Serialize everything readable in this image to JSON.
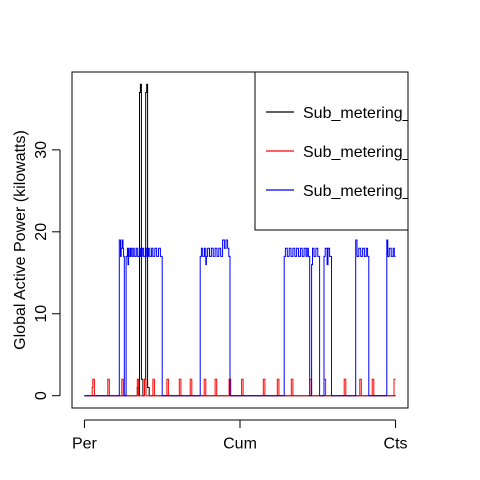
{
  "chart_data": {
    "type": "line",
    "title": "",
    "xlabel": "",
    "ylabel": "Global Active Power (kilowatts)",
    "x_ticks": [
      "Per",
      "Cum",
      "Cts"
    ],
    "y_ticks": [
      0,
      10,
      20,
      30
    ],
    "ylim": [
      -1.5,
      39.5
    ],
    "xlim": [
      -0.04,
      1.04
    ],
    "legend_position": "top-right",
    "series": [
      {
        "name": "Sub_metering_",
        "color": "#000000",
        "points": [
          [
            0.0,
            0
          ],
          [
            0.17,
            0
          ],
          [
            0.17,
            1
          ],
          [
            0.175,
            1
          ],
          [
            0.175,
            0
          ],
          [
            0.177,
            0
          ],
          [
            0.177,
            37
          ],
          [
            0.18,
            37
          ],
          [
            0.18,
            38
          ],
          [
            0.183,
            38
          ],
          [
            0.183,
            2
          ],
          [
            0.188,
            2
          ],
          [
            0.188,
            0
          ],
          [
            0.193,
            0
          ],
          [
            0.193,
            2
          ],
          [
            0.197,
            2
          ],
          [
            0.197,
            37
          ],
          [
            0.2,
            37
          ],
          [
            0.2,
            38
          ],
          [
            0.203,
            38
          ],
          [
            0.203,
            1
          ],
          [
            0.208,
            1
          ],
          [
            0.208,
            0
          ],
          [
            1.0,
            0
          ]
        ]
      },
      {
        "name": "Sub_metering_",
        "color": "#ff0000",
        "points": [
          [
            0.0,
            0
          ],
          [
            0.025,
            0
          ],
          [
            0.025,
            1
          ],
          [
            0.027,
            1
          ],
          [
            0.027,
            2
          ],
          [
            0.032,
            2
          ],
          [
            0.032,
            0
          ],
          [
            0.075,
            0
          ],
          [
            0.075,
            2
          ],
          [
            0.08,
            2
          ],
          [
            0.08,
            0
          ],
          [
            0.12,
            0
          ],
          [
            0.12,
            2
          ],
          [
            0.125,
            2
          ],
          [
            0.125,
            0
          ],
          [
            0.17,
            0
          ],
          [
            0.17,
            2
          ],
          [
            0.174,
            2
          ],
          [
            0.174,
            0
          ],
          [
            0.193,
            0
          ],
          [
            0.193,
            2
          ],
          [
            0.198,
            2
          ],
          [
            0.198,
            0
          ],
          [
            0.22,
            0
          ],
          [
            0.22,
            2
          ],
          [
            0.225,
            2
          ],
          [
            0.225,
            0
          ],
          [
            0.265,
            0
          ],
          [
            0.265,
            2
          ],
          [
            0.27,
            2
          ],
          [
            0.27,
            0
          ],
          [
            0.305,
            0
          ],
          [
            0.305,
            2
          ],
          [
            0.31,
            2
          ],
          [
            0.31,
            0
          ],
          [
            0.34,
            0
          ],
          [
            0.34,
            2
          ],
          [
            0.345,
            2
          ],
          [
            0.345,
            0
          ],
          [
            0.385,
            0
          ],
          [
            0.385,
            2
          ],
          [
            0.39,
            2
          ],
          [
            0.39,
            0
          ],
          [
            0.42,
            0
          ],
          [
            0.42,
            2
          ],
          [
            0.425,
            2
          ],
          [
            0.425,
            0
          ],
          [
            0.465,
            0
          ],
          [
            0.465,
            2
          ],
          [
            0.47,
            2
          ],
          [
            0.47,
            0
          ],
          [
            0.505,
            0
          ],
          [
            0.505,
            2
          ],
          [
            0.51,
            2
          ],
          [
            0.51,
            0
          ],
          [
            0.575,
            0
          ],
          [
            0.575,
            2
          ],
          [
            0.58,
            2
          ],
          [
            0.58,
            0
          ],
          [
            0.62,
            0
          ],
          [
            0.62,
            2
          ],
          [
            0.625,
            2
          ],
          [
            0.625,
            0
          ],
          [
            0.665,
            0
          ],
          [
            0.665,
            2
          ],
          [
            0.67,
            2
          ],
          [
            0.67,
            0
          ],
          [
            0.725,
            0
          ],
          [
            0.725,
            2
          ],
          [
            0.73,
            2
          ],
          [
            0.73,
            0
          ],
          [
            0.77,
            0
          ],
          [
            0.77,
            2
          ],
          [
            0.775,
            2
          ],
          [
            0.775,
            0
          ],
          [
            0.835,
            0
          ],
          [
            0.835,
            2
          ],
          [
            0.84,
            2
          ],
          [
            0.84,
            0
          ],
          [
            0.885,
            0
          ],
          [
            0.885,
            2
          ],
          [
            0.89,
            2
          ],
          [
            0.89,
            0
          ],
          [
            0.925,
            0
          ],
          [
            0.925,
            2
          ],
          [
            0.93,
            2
          ],
          [
            0.93,
            0
          ],
          [
            0.995,
            0
          ],
          [
            0.995,
            2
          ],
          [
            1.0,
            2
          ]
        ]
      },
      {
        "name": "Sub_metering_",
        "color": "#0000ff",
        "points": [
          [
            0.0,
            0
          ],
          [
            0.112,
            0
          ],
          [
            0.112,
            19
          ],
          [
            0.116,
            19
          ],
          [
            0.116,
            17
          ],
          [
            0.118,
            17
          ],
          [
            0.118,
            18
          ],
          [
            0.121,
            18
          ],
          [
            0.121,
            19
          ],
          [
            0.124,
            19
          ],
          [
            0.124,
            18
          ],
          [
            0.126,
            18
          ],
          [
            0.126,
            17
          ],
          [
            0.128,
            17
          ],
          [
            0.128,
            0
          ],
          [
            0.134,
            0
          ],
          [
            0.134,
            17
          ],
          [
            0.138,
            17
          ],
          [
            0.138,
            18
          ],
          [
            0.14,
            18
          ],
          [
            0.14,
            16
          ],
          [
            0.142,
            16
          ],
          [
            0.142,
            18
          ],
          [
            0.144,
            18
          ],
          [
            0.144,
            17
          ],
          [
            0.148,
            17
          ],
          [
            0.148,
            18
          ],
          [
            0.152,
            18
          ],
          [
            0.152,
            17
          ],
          [
            0.156,
            17
          ],
          [
            0.156,
            18
          ],
          [
            0.16,
            18
          ],
          [
            0.16,
            17
          ],
          [
            0.166,
            17
          ],
          [
            0.166,
            18
          ],
          [
            0.17,
            18
          ],
          [
            0.17,
            17
          ],
          [
            0.176,
            17
          ],
          [
            0.176,
            18
          ],
          [
            0.18,
            18
          ],
          [
            0.18,
            17
          ],
          [
            0.186,
            17
          ],
          [
            0.186,
            18
          ],
          [
            0.19,
            18
          ],
          [
            0.19,
            17
          ],
          [
            0.196,
            17
          ],
          [
            0.196,
            18
          ],
          [
            0.2,
            18
          ],
          [
            0.2,
            17
          ],
          [
            0.206,
            17
          ],
          [
            0.206,
            18
          ],
          [
            0.21,
            18
          ],
          [
            0.21,
            17
          ],
          [
            0.216,
            17
          ],
          [
            0.216,
            18
          ],
          [
            0.22,
            18
          ],
          [
            0.22,
            17
          ],
          [
            0.226,
            17
          ],
          [
            0.226,
            18
          ],
          [
            0.232,
            18
          ],
          [
            0.232,
            17
          ],
          [
            0.238,
            17
          ],
          [
            0.238,
            18
          ],
          [
            0.244,
            18
          ],
          [
            0.244,
            17
          ],
          [
            0.25,
            17
          ],
          [
            0.25,
            0
          ],
          [
            0.372,
            0
          ],
          [
            0.372,
            17
          ],
          [
            0.376,
            17
          ],
          [
            0.376,
            18
          ],
          [
            0.38,
            18
          ],
          [
            0.38,
            17
          ],
          [
            0.386,
            17
          ],
          [
            0.386,
            18
          ],
          [
            0.39,
            18
          ],
          [
            0.39,
            16
          ],
          [
            0.392,
            16
          ],
          [
            0.392,
            17
          ],
          [
            0.396,
            17
          ],
          [
            0.396,
            18
          ],
          [
            0.402,
            18
          ],
          [
            0.402,
            17
          ],
          [
            0.408,
            17
          ],
          [
            0.408,
            18
          ],
          [
            0.414,
            18
          ],
          [
            0.414,
            17
          ],
          [
            0.42,
            17
          ],
          [
            0.42,
            18
          ],
          [
            0.426,
            18
          ],
          [
            0.426,
            17
          ],
          [
            0.432,
            17
          ],
          [
            0.432,
            18
          ],
          [
            0.438,
            18
          ],
          [
            0.438,
            17
          ],
          [
            0.444,
            17
          ],
          [
            0.444,
            19
          ],
          [
            0.45,
            19
          ],
          [
            0.45,
            18
          ],
          [
            0.455,
            18
          ],
          [
            0.455,
            19
          ],
          [
            0.46,
            19
          ],
          [
            0.46,
            18
          ],
          [
            0.464,
            18
          ],
          [
            0.464,
            17
          ],
          [
            0.468,
            17
          ],
          [
            0.468,
            0
          ],
          [
            0.642,
            0
          ],
          [
            0.642,
            17
          ],
          [
            0.646,
            17
          ],
          [
            0.646,
            18
          ],
          [
            0.652,
            18
          ],
          [
            0.652,
            17
          ],
          [
            0.658,
            17
          ],
          [
            0.658,
            18
          ],
          [
            0.664,
            18
          ],
          [
            0.664,
            17
          ],
          [
            0.67,
            17
          ],
          [
            0.67,
            18
          ],
          [
            0.676,
            18
          ],
          [
            0.676,
            17
          ],
          [
            0.682,
            17
          ],
          [
            0.682,
            18
          ],
          [
            0.688,
            18
          ],
          [
            0.688,
            17
          ],
          [
            0.694,
            17
          ],
          [
            0.694,
            18
          ],
          [
            0.7,
            18
          ],
          [
            0.7,
            17
          ],
          [
            0.706,
            17
          ],
          [
            0.706,
            18
          ],
          [
            0.712,
            18
          ],
          [
            0.712,
            17
          ],
          [
            0.716,
            17
          ],
          [
            0.716,
            18
          ],
          [
            0.72,
            18
          ],
          [
            0.72,
            17
          ],
          [
            0.724,
            17
          ],
          [
            0.724,
            0
          ],
          [
            0.73,
            0
          ],
          [
            0.73,
            16
          ],
          [
            0.733,
            16
          ],
          [
            0.733,
            18
          ],
          [
            0.738,
            18
          ],
          [
            0.738,
            17
          ],
          [
            0.744,
            17
          ],
          [
            0.744,
            18
          ],
          [
            0.75,
            18
          ],
          [
            0.75,
            17
          ],
          [
            0.756,
            17
          ],
          [
            0.756,
            0
          ],
          [
            0.77,
            0
          ],
          [
            0.77,
            17
          ],
          [
            0.774,
            17
          ],
          [
            0.774,
            18
          ],
          [
            0.78,
            18
          ],
          [
            0.78,
            16
          ],
          [
            0.783,
            16
          ],
          [
            0.783,
            18
          ],
          [
            0.788,
            18
          ],
          [
            0.788,
            17
          ],
          [
            0.794,
            17
          ],
          [
            0.794,
            0
          ],
          [
            0.872,
            0
          ],
          [
            0.872,
            19
          ],
          [
            0.876,
            19
          ],
          [
            0.876,
            17
          ],
          [
            0.882,
            17
          ],
          [
            0.882,
            18
          ],
          [
            0.888,
            18
          ],
          [
            0.888,
            17
          ],
          [
            0.894,
            17
          ],
          [
            0.894,
            18
          ],
          [
            0.9,
            18
          ],
          [
            0.9,
            17
          ],
          [
            0.906,
            17
          ],
          [
            0.906,
            18
          ],
          [
            0.91,
            18
          ],
          [
            0.91,
            17
          ],
          [
            0.914,
            17
          ],
          [
            0.914,
            0
          ],
          [
            0.972,
            0
          ],
          [
            0.972,
            19
          ],
          [
            0.975,
            19
          ],
          [
            0.975,
            17
          ],
          [
            0.98,
            17
          ],
          [
            0.98,
            18
          ],
          [
            0.986,
            18
          ],
          [
            0.986,
            17
          ],
          [
            0.992,
            17
          ],
          [
            0.992,
            18
          ],
          [
            0.996,
            18
          ],
          [
            0.996,
            17
          ],
          [
            1.0,
            17
          ]
        ]
      }
    ]
  }
}
